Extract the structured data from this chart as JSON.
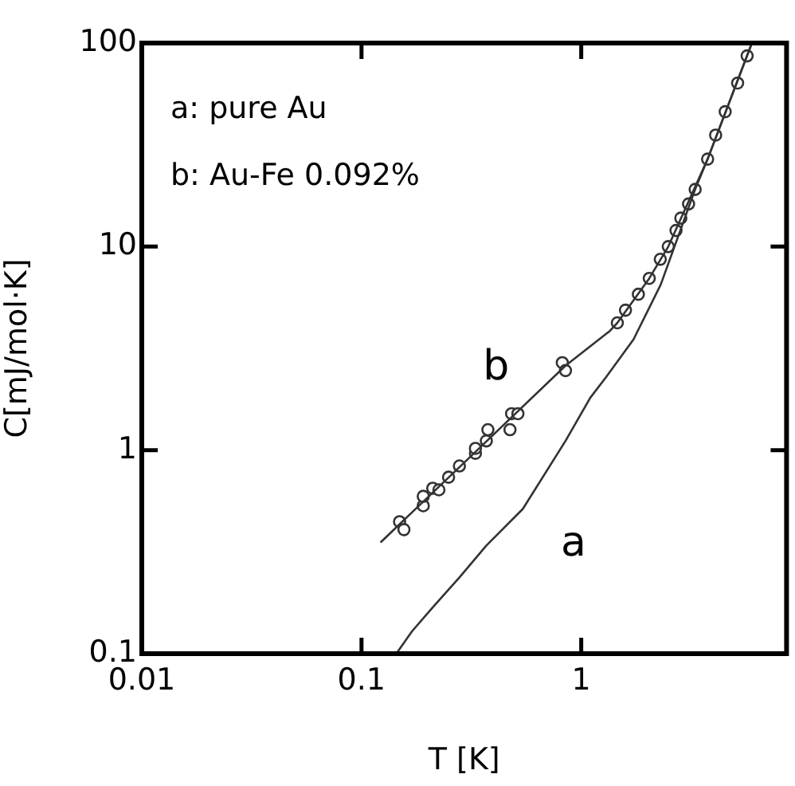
{
  "chart_data": {
    "type": "line",
    "xlabel": "T [K]",
    "ylabel": "C[mJ/mol·K]",
    "log": "xy",
    "xlim": [
      0.01,
      8.6
    ],
    "ylim": [
      0.1,
      100
    ],
    "xticks": [
      0.01,
      0.1,
      1
    ],
    "yticks": [
      0.1,
      1,
      10,
      100
    ],
    "grid": false,
    "legend": false,
    "marker": "none",
    "line_style": "solid",
    "annotations": [
      "a: pure Au",
      "b: Au-Fe 0.092%"
    ],
    "series": [
      {
        "name": "a",
        "color": "#333333",
        "x": [
          0.144,
          0.17,
          0.211,
          0.279,
          0.37,
          0.542,
          0.848,
          1.1,
          1.3,
          1.73,
          2.3,
          3.3,
          3.76,
          5.98
        ],
        "values": [
          0.1,
          0.129,
          0.169,
          0.237,
          0.34,
          0.514,
          1.11,
          1.81,
          2.29,
          3.5,
          6.5,
          19.1,
          26.9,
          100
        ]
      },
      {
        "name": "b",
        "color": "#333333",
        "x": [
          0.122,
          0.33,
          0.848,
          1.35,
          1.46,
          2.04,
          2.49,
          3.76,
          5.98
        ],
        "values": [
          0.352,
          0.98,
          2.6,
          3.85,
          4.22,
          6.98,
          10,
          26.9,
          100
        ]
      },
      {
        "type": "scatter",
        "color": "#333333",
        "marker": "circle",
        "x": [
          0.149,
          0.156,
          0.191,
          0.191,
          0.211,
          0.225,
          0.249,
          0.279,
          0.33,
          0.33,
          0.37,
          0.376,
          0.474,
          0.482,
          0.515,
          0.82,
          0.848,
          1.46,
          1.59,
          1.82,
          2.04,
          2.29,
          2.49,
          2.7,
          2.84,
          3.08,
          3.3,
          3.76,
          4.09,
          4.52,
          5.15,
          5.69
        ],
        "values": [
          0.445,
          0.407,
          0.533,
          0.593,
          0.65,
          0.638,
          0.736,
          0.836,
          0.965,
          1.02,
          1.11,
          1.26,
          1.26,
          1.51,
          1.51,
          2.69,
          2.46,
          4.22,
          4.87,
          5.83,
          6.98,
          8.66,
          10,
          12,
          13.8,
          16.2,
          19.1,
          26.9,
          35.3,
          46,
          63.6,
          86.5
        ]
      }
    ]
  }
}
